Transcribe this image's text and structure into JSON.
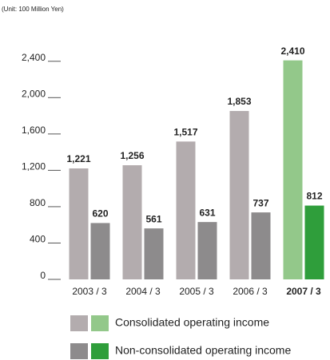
{
  "chart_data": {
    "type": "grouped-bar",
    "subtitle": "(Unit: 100 Million Yen)",
    "categories": [
      "2003 / 3",
      "2004 / 3",
      "2005 / 3",
      "2006 / 3",
      "2007 / 3"
    ],
    "highlight": [
      false,
      false,
      false,
      false,
      true
    ],
    "series": [
      {
        "name": "Consolidated operating income",
        "colors": [
          "#b3acae",
          "#b3acae",
          "#b3acae",
          "#b3acae",
          "#93c88a"
        ],
        "values": [
          1221,
          1256,
          1517,
          1853,
          2410
        ],
        "value_labels": [
          "1,221",
          "1,256",
          "1,517",
          "1,853",
          "2,410"
        ]
      },
      {
        "name": "Non-consolidated operating income",
        "colors": [
          "#8d8b8c",
          "#8d8b8c",
          "#8d8b8c",
          "#8d8b8c",
          "#2f9e3b"
        ],
        "values": [
          620,
          561,
          631,
          737,
          812
        ],
        "value_labels": [
          "620",
          "561",
          "631",
          "737",
          "812"
        ]
      }
    ],
    "ylim": [
      0,
      2600
    ],
    "yticks": [
      0,
      400,
      800,
      {
        "value": 1200,
        "label": "1,200"
      },
      {
        "value": 1600,
        "label": "1,600"
      },
      {
        "value": 2000,
        "label": "2,000"
      },
      {
        "value": 2400,
        "label": "2,400"
      }
    ]
  }
}
